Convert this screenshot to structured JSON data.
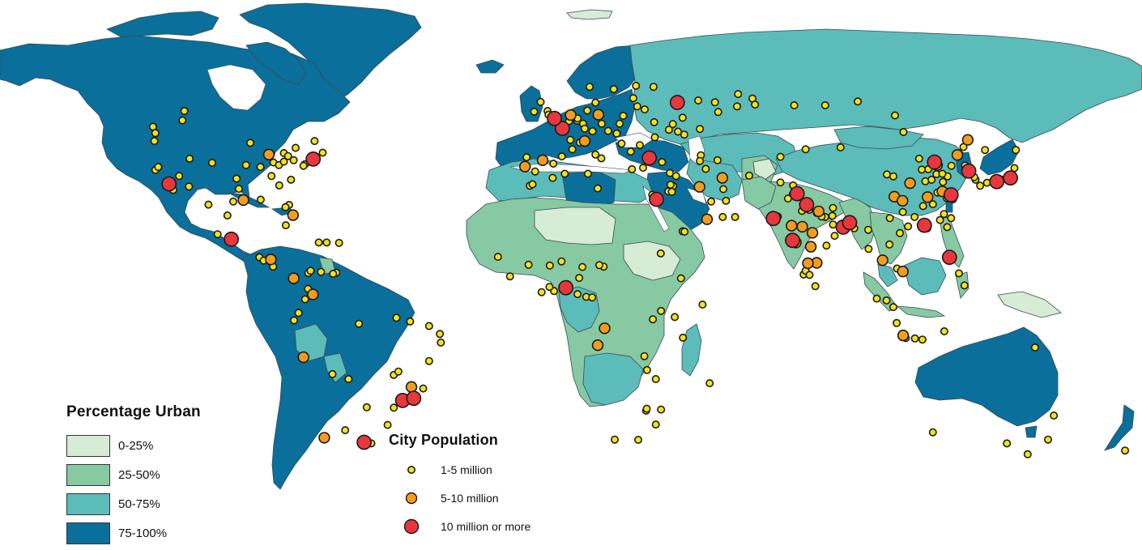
{
  "legend_urban": {
    "title": "Percentage Urban",
    "classes": [
      {
        "label": "0-25%",
        "color": "#d6ecd4"
      },
      {
        "label": "25-50%",
        "color": "#86c9a3"
      },
      {
        "label": "50-75%",
        "color": "#5bbcb9"
      },
      {
        "label": "75-100%",
        "color": "#0a6f9a"
      }
    ]
  },
  "legend_city": {
    "title": "City Population",
    "classes": [
      {
        "label": "1-5 million",
        "color": "#f5e11a"
      },
      {
        "label": "5-10 million",
        "color": "#f39c1f"
      },
      {
        "label": "10 million or more",
        "color": "#e8363d"
      }
    ]
  },
  "cities_large": [
    {
      "lon": -118.2,
      "lat": 34.1
    },
    {
      "lon": -74.0,
      "lat": 40.7
    },
    {
      "lon": -99.1,
      "lat": 19.4
    },
    {
      "lon": -46.6,
      "lat": -23.5
    },
    {
      "lon": -43.2,
      "lat": -22.9
    },
    {
      "lon": -58.4,
      "lat": -34.6
    },
    {
      "lon": 2.35,
      "lat": 48.85
    },
    {
      "lon": -0.1,
      "lat": 51.5
    },
    {
      "lon": 37.6,
      "lat": 55.75
    },
    {
      "lon": 29.0,
      "lat": 41.0
    },
    {
      "lon": 31.2,
      "lat": 30.0
    },
    {
      "lon": 3.4,
      "lat": 6.5
    },
    {
      "lon": 72.9,
      "lat": 19.1
    },
    {
      "lon": 77.2,
      "lat": 28.6
    },
    {
      "lon": 88.4,
      "lat": 22.6
    },
    {
      "lon": 67.0,
      "lat": 24.9
    },
    {
      "lon": 90.4,
      "lat": 23.8
    },
    {
      "lon": 116.4,
      "lat": 39.9
    },
    {
      "lon": 121.5,
      "lat": 31.2
    },
    {
      "lon": 113.3,
      "lat": 23.1
    },
    {
      "lon": 139.7,
      "lat": 35.7
    },
    {
      "lon": 135.5,
      "lat": 34.7
    },
    {
      "lon": 126.9,
      "lat": 37.5
    },
    {
      "lon": 121.0,
      "lat": 14.6
    },
    {
      "lon": 74.3,
      "lat": 31.5
    }
  ],
  "cities_medium": [
    {
      "lon": -87.6,
      "lat": 41.9
    },
    {
      "lon": -95.4,
      "lat": 29.8
    },
    {
      "lon": -80.2,
      "lat": 25.8
    },
    {
      "lon": -77.0,
      "lat": -12.0
    },
    {
      "lon": -70.6,
      "lat": -33.4
    },
    {
      "lon": -74.1,
      "lat": 4.7
    },
    {
      "lon": -43.9,
      "lat": -19.9
    },
    {
      "lon": -3.7,
      "lat": 40.4
    },
    {
      "lon": 4.9,
      "lat": 52.4
    },
    {
      "lon": 13.4,
      "lat": 52.5
    },
    {
      "lon": 51.4,
      "lat": 35.7
    },
    {
      "lon": 44.4,
      "lat": 33.3
    },
    {
      "lon": 46.7,
      "lat": 24.7
    },
    {
      "lon": 15.3,
      "lat": -4.3
    },
    {
      "lon": 13.2,
      "lat": -8.8
    },
    {
      "lon": 80.3,
      "lat": 13.1
    },
    {
      "lon": 77.6,
      "lat": 13.0
    },
    {
      "lon": 78.5,
      "lat": 17.4
    },
    {
      "lon": 72.6,
      "lat": 23.0
    },
    {
      "lon": 106.8,
      "lat": -6.2
    },
    {
      "lon": 100.5,
      "lat": 13.8
    },
    {
      "lon": 106.7,
      "lat": 10.8
    },
    {
      "lon": 104.1,
      "lat": 30.7
    },
    {
      "lon": 106.6,
      "lat": 29.6
    },
    {
      "lon": 114.3,
      "lat": 30.6
    },
    {
      "lon": 117.2,
      "lat": 39.1
    },
    {
      "lon": 123.4,
      "lat": 41.8
    },
    {
      "lon": 126.6,
      "lat": 45.8
    },
    {
      "lon": 118.8,
      "lat": 32.1
    },
    {
      "lon": 108.9,
      "lat": 34.3
    },
    {
      "lon": 79.0,
      "lat": 21.1
    },
    {
      "lon": 75.9,
      "lat": 22.7
    },
    {
      "lon": 80.9,
      "lat": 26.8
    },
    {
      "lon": 73.9,
      "lat": 18.5
    },
    {
      "lon": 9.2,
      "lat": 45.5
    },
    {
      "lon": -9.1,
      "lat": 38.7
    },
    {
      "lon": -87.0,
      "lat": 14.0
    },
    {
      "lon": -80.0,
      "lat": 9.0
    }
  ],
  "cities_small": [
    {
      "lon": -123.1,
      "lat": 49.3
    },
    {
      "lon": -122.4,
      "lat": 47.6
    },
    {
      "lon": -122.7,
      "lat": 45.5
    },
    {
      "lon": -122.4,
      "lat": 37.8
    },
    {
      "lon": -121.5,
      "lat": 38.6
    },
    {
      "lon": -117.2,
      "lat": 32.7
    },
    {
      "lon": -112.1,
      "lat": 33.4
    },
    {
      "lon": -115.1,
      "lat": 36.2
    },
    {
      "lon": -111.9,
      "lat": 40.8
    },
    {
      "lon": -104.99,
      "lat": 39.7
    },
    {
      "lon": -97.5,
      "lat": 35.5
    },
    {
      "lon": -96.8,
      "lat": 32.8
    },
    {
      "lon": -98.5,
      "lat": 29.4
    },
    {
      "lon": -93.3,
      "lat": 45.0
    },
    {
      "lon": -90.2,
      "lat": 38.6
    },
    {
      "lon": -94.6,
      "lat": 39.1
    },
    {
      "lon": -86.2,
      "lat": 39.8
    },
    {
      "lon": -84.5,
      "lat": 39.1
    },
    {
      "lon": -83.0,
      "lat": 40.0
    },
    {
      "lon": -83.0,
      "lat": 42.3
    },
    {
      "lon": -81.7,
      "lat": 41.5
    },
    {
      "lon": -80.0,
      "lat": 40.4
    },
    {
      "lon": -79.4,
      "lat": 43.7
    },
    {
      "lon": -73.6,
      "lat": 45.5
    },
    {
      "lon": -71.1,
      "lat": 42.4
    },
    {
      "lon": -75.2,
      "lat": 40.0
    },
    {
      "lon": -76.6,
      "lat": 39.3
    },
    {
      "lon": -77.0,
      "lat": 38.9
    },
    {
      "lon": -84.4,
      "lat": 33.7
    },
    {
      "lon": -80.8,
      "lat": 35.2
    },
    {
      "lon": -86.8,
      "lat": 36.2
    },
    {
      "lon": -90.1,
      "lat": 29.9
    },
    {
      "lon": -81.4,
      "lat": 28.5
    },
    {
      "lon": -82.5,
      "lat": 27.9
    },
    {
      "lon": -114.1,
      "lat": 51.0
    },
    {
      "lon": -113.5,
      "lat": 53.5
    },
    {
      "lon": -100.3,
      "lat": 25.7
    },
    {
      "lon": -103.3,
      "lat": 20.7
    },
    {
      "lon": -98.2,
      "lat": 19.0
    },
    {
      "lon": -106.1,
      "lat": 28.6
    },
    {
      "lon": -116.9,
      "lat": 32.5
    },
    {
      "lon": -82.4,
      "lat": 23.1
    },
    {
      "lon": -69.9,
      "lat": 18.5
    },
    {
      "lon": -72.3,
      "lat": 18.5
    },
    {
      "lon": -66.1,
      "lat": 18.4
    },
    {
      "lon": -90.5,
      "lat": 14.6
    },
    {
      "lon": -89.2,
      "lat": 13.7
    },
    {
      "lon": -86.3,
      "lat": 12.1
    },
    {
      "lon": -79.5,
      "lat": 9.0
    },
    {
      "lon": -66.9,
      "lat": 10.5
    },
    {
      "lon": -67.9,
      "lat": 10.2
    },
    {
      "lon": -71.6,
      "lat": 10.7
    },
    {
      "lon": -75.5,
      "lat": 10.4
    },
    {
      "lon": -74.8,
      "lat": 11.0
    },
    {
      "lon": -75.6,
      "lat": 6.2
    },
    {
      "lon": -76.5,
      "lat": 3.4
    },
    {
      "lon": -78.5,
      "lat": -0.2
    },
    {
      "lon": -79.9,
      "lat": -2.2
    },
    {
      "lon": -68.1,
      "lat": -16.5
    },
    {
      "lon": -63.2,
      "lat": -17.8
    },
    {
      "lon": -57.6,
      "lat": -25.3
    },
    {
      "lon": -56.2,
      "lat": -34.9
    },
    {
      "lon": -64.2,
      "lat": -31.4
    },
    {
      "lon": -60.0,
      "lat": -3.1
    },
    {
      "lon": -48.5,
      "lat": -1.5
    },
    {
      "lon": -38.5,
      "lat": -3.7
    },
    {
      "lon": -35.2,
      "lat": -5.8
    },
    {
      "lon": -34.9,
      "lat": -8.1
    },
    {
      "lon": -38.5,
      "lat": -13.0
    },
    {
      "lon": -49.3,
      "lat": -16.7
    },
    {
      "lon": -47.9,
      "lat": -15.8
    },
    {
      "lon": -49.3,
      "lat": -25.4
    },
    {
      "lon": -51.2,
      "lat": -30.0
    },
    {
      "lon": -40.3,
      "lat": -20.3
    },
    {
      "lon": -44.3,
      "lat": -2.5
    },
    {
      "lon": -8.6,
      "lat": 41.2
    },
    {
      "lon": -6.0,
      "lat": 37.4
    },
    {
      "lon": 2.2,
      "lat": 41.4
    },
    {
      "lon": -0.4,
      "lat": 39.5
    },
    {
      "lon": -2.2,
      "lat": 53.5
    },
    {
      "lon": -1.9,
      "lat": 52.5
    },
    {
      "lon": -4.3,
      "lat": 55.9
    },
    {
      "lon": -6.3,
      "lat": 53.3
    },
    {
      "lon": 4.4,
      "lat": 50.8
    },
    {
      "lon": 6.9,
      "lat": 50.9
    },
    {
      "lon": 8.7,
      "lat": 50.1
    },
    {
      "lon": 10.0,
      "lat": 53.6
    },
    {
      "lon": 11.6,
      "lat": 48.1
    },
    {
      "lon": 9.2,
      "lat": 48.8
    },
    {
      "lon": 7.0,
      "lat": 51.5
    },
    {
      "lon": 12.5,
      "lat": 55.7
    },
    {
      "lon": 18.1,
      "lat": 59.3
    },
    {
      "lon": 10.7,
      "lat": 59.9
    },
    {
      "lon": 24.9,
      "lat": 60.2
    },
    {
      "lon": 21.0,
      "lat": 52.2
    },
    {
      "lon": 19.9,
      "lat": 50.1
    },
    {
      "lon": 14.4,
      "lat": 50.1
    },
    {
      "lon": 16.4,
      "lat": 48.2
    },
    {
      "lon": 19.0,
      "lat": 47.5
    },
    {
      "lon": 26.1,
      "lat": 44.4
    },
    {
      "lon": 20.5,
      "lat": 44.8
    },
    {
      "lon": 23.3,
      "lat": 42.7
    },
    {
      "lon": 23.7,
      "lat": 38.0
    },
    {
      "lon": 12.5,
      "lat": 41.9
    },
    {
      "lon": 14.3,
      "lat": 40.9
    },
    {
      "lon": 7.7,
      "lat": 45.1
    },
    {
      "lon": 5.4,
      "lat": 43.3
    },
    {
      "lon": 4.8,
      "lat": 45.8
    },
    {
      "lon": 30.5,
      "lat": 50.5
    },
    {
      "lon": 36.2,
      "lat": 50.0
    },
    {
      "lon": 30.7,
      "lat": 46.5
    },
    {
      "lon": 35.0,
      "lat": 48.5
    },
    {
      "lon": 37.8,
      "lat": 48.0
    },
    {
      "lon": 27.6,
      "lat": 53.9
    },
    {
      "lon": 30.3,
      "lat": 59.9
    },
    {
      "lon": 24.1,
      "lat": 56.9
    },
    {
      "lon": 25.3,
      "lat": 54.7
    },
    {
      "lon": 44.0,
      "lat": 56.3
    },
    {
      "lon": 49.1,
      "lat": 55.8
    },
    {
      "lon": 50.1,
      "lat": 53.2
    },
    {
      "lon": 44.5,
      "lat": 48.7
    },
    {
      "lon": 39.7,
      "lat": 47.2
    },
    {
      "lon": 39.2,
      "lat": 51.7
    },
    {
      "lon": 56.2,
      "lat": 58.0
    },
    {
      "lon": 60.6,
      "lat": 56.8
    },
    {
      "lon": 61.4,
      "lat": 55.2
    },
    {
      "lon": 55.9,
      "lat": 54.7
    },
    {
      "lon": 73.4,
      "lat": 55.0
    },
    {
      "lon": 82.9,
      "lat": 55.0
    },
    {
      "lon": 92.9,
      "lat": 56.0
    },
    {
      "lon": 104.3,
      "lat": 52.3
    },
    {
      "lon": 131.9,
      "lat": 43.1
    },
    {
      "lon": 44.8,
      "lat": 41.7
    },
    {
      "lon": 49.9,
      "lat": 40.4
    },
    {
      "lon": 44.5,
      "lat": 40.2
    },
    {
      "lon": 32.9,
      "lat": 39.9
    },
    {
      "lon": 27.1,
      "lat": 38.4
    },
    {
      "lon": 35.3,
      "lat": 37.0
    },
    {
      "lon": 36.3,
      "lat": 33.5
    },
    {
      "lon": 37.2,
      "lat": 36.2
    },
    {
      "lon": 35.5,
      "lat": 33.9
    },
    {
      "lon": 34.8,
      "lat": 32.1
    },
    {
      "lon": 35.9,
      "lat": 32.0
    },
    {
      "lon": 39.2,
      "lat": 21.5
    },
    {
      "lon": 39.8,
      "lat": 21.4
    },
    {
      "lon": 55.3,
      "lat": 25.3
    },
    {
      "lon": 51.5,
      "lat": 25.3
    },
    {
      "lon": 47.98,
      "lat": 29.4
    },
    {
      "lon": 59.6,
      "lat": 36.3
    },
    {
      "lon": 51.7,
      "lat": 32.7
    },
    {
      "lon": 52.5,
      "lat": 29.6
    },
    {
      "lon": 46.3,
      "lat": 38.1
    },
    {
      "lon": 69.2,
      "lat": 41.3
    },
    {
      "lon": 76.9,
      "lat": 43.3
    },
    {
      "lon": 69.2,
      "lat": 34.5
    },
    {
      "lon": 71.5,
      "lat": 30.2
    },
    {
      "lon": 73.1,
      "lat": 33.7
    },
    {
      "lon": 73.0,
      "lat": 31.4
    },
    {
      "lon": 68.4,
      "lat": 25.4
    },
    {
      "lon": 75.8,
      "lat": 26.9
    },
    {
      "lon": 80.3,
      "lat": 26.4
    },
    {
      "lon": 85.1,
      "lat": 25.6
    },
    {
      "lon": 82.9,
      "lat": 25.3
    },
    {
      "lon": 78.0,
      "lat": 27.2
    },
    {
      "lon": 81.8,
      "lat": 25.4
    },
    {
      "lon": 85.3,
      "lat": 23.3
    },
    {
      "lon": 85.8,
      "lat": 20.3
    },
    {
      "lon": 83.3,
      "lat": 17.7
    },
    {
      "lon": 76.3,
      "lat": 10.0
    },
    {
      "lon": 76.9,
      "lat": 11.0
    },
    {
      "lon": 78.1,
      "lat": 9.9
    },
    {
      "lon": 79.9,
      "lat": 6.9
    },
    {
      "lon": 85.3,
      "lat": 27.7
    },
    {
      "lon": 91.8,
      "lat": 22.3
    },
    {
      "lon": 96.2,
      "lat": 16.8
    },
    {
      "lon": 96.1,
      "lat": 21.9
    },
    {
      "lon": 102.6,
      "lat": 18.0
    },
    {
      "lon": 105.8,
      "lat": 21.0
    },
    {
      "lon": 104.9,
      "lat": 11.6
    },
    {
      "lon": 101.7,
      "lat": 3.1
    },
    {
      "lon": 103.8,
      "lat": 1.35
    },
    {
      "lon": 98.7,
      "lat": 3.6
    },
    {
      "lon": 104.8,
      "lat": -2.9
    },
    {
      "lon": 112.7,
      "lat": -7.3
    },
    {
      "lon": 107.6,
      "lat": -6.9
    },
    {
      "lon": 110.4,
      "lat": -7.0
    },
    {
      "lon": 119.4,
      "lat": -5.1
    },
    {
      "lon": 125.6,
      "lat": 7.1
    },
    {
      "lon": 123.9,
      "lat": 10.3
    },
    {
      "lon": 114.2,
      "lat": 22.3
    },
    {
      "lon": 121.5,
      "lat": 25.0
    },
    {
      "lon": 120.3,
      "lat": 22.6
    },
    {
      "lon": 119.3,
      "lat": 26.1
    },
    {
      "lon": 118.1,
      "lat": 24.5
    },
    {
      "lon": 120.2,
      "lat": 30.3
    },
    {
      "lon": 112.9,
      "lat": 28.2
    },
    {
      "lon": 115.9,
      "lat": 28.7
    },
    {
      "lon": 117.3,
      "lat": 31.8
    },
    {
      "lon": 113.6,
      "lat": 34.8
    },
    {
      "lon": 117.0,
      "lat": 36.7
    },
    {
      "lon": 120.4,
      "lat": 36.1
    },
    {
      "lon": 114.5,
      "lat": 38.0
    },
    {
      "lon": 112.5,
      "lat": 37.9
    },
    {
      "lon": 111.7,
      "lat": 40.8
    },
    {
      "lon": 103.8,
      "lat": 36.1
    },
    {
      "lon": 101.8,
      "lat": 36.6
    },
    {
      "lon": 87.6,
      "lat": 43.8
    },
    {
      "lon": 102.7,
      "lat": 25.0
    },
    {
      "lon": 106.7,
      "lat": 26.6
    },
    {
      "lon": 108.3,
      "lat": 22.8
    },
    {
      "lon": 110.3,
      "lat": 25.3
    },
    {
      "lon": 125.3,
      "lat": 43.9
    },
    {
      "lon": 121.6,
      "lat": 38.9
    },
    {
      "lon": 119.0,
      "lat": 34.6
    },
    {
      "lon": 120.9,
      "lat": 32.0
    },
    {
      "lon": 122.1,
      "lat": 30.0
    },
    {
      "lon": 118.8,
      "lat": 36.8
    },
    {
      "lon": 115.5,
      "lat": 35.2
    },
    {
      "lon": 129.0,
      "lat": 35.2
    },
    {
      "lon": 128.6,
      "lat": 35.9
    },
    {
      "lon": 126.7,
      "lat": 37.5
    },
    {
      "lon": 125.75,
      "lat": 39.0
    },
    {
      "lon": 130.4,
      "lat": 33.6
    },
    {
      "lon": 132.5,
      "lat": 34.4
    },
    {
      "lon": 136.9,
      "lat": 35.2
    },
    {
      "lon": 140.9,
      "lat": 38.3
    },
    {
      "lon": 141.35,
      "lat": 43.1
    },
    {
      "lon": 106.9,
      "lat": 47.9
    },
    {
      "lon": -17.4,
      "lat": 14.7
    },
    {
      "lon": -13.7,
      "lat": 9.5
    },
    {
      "lon": -7.6,
      "lat": 33.6
    },
    {
      "lon": -6.8,
      "lat": 34.0
    },
    {
      "lon": 3.1,
      "lat": 36.8
    },
    {
      "lon": -0.6,
      "lat": 35.7
    },
    {
      "lon": 10.2,
      "lat": 36.8
    },
    {
      "lon": 13.2,
      "lat": 32.9
    },
    {
      "lon": 29.9,
      "lat": 31.2
    },
    {
      "lon": 32.5,
      "lat": 15.6
    },
    {
      "lon": 38.7,
      "lat": 9.0
    },
    {
      "lon": 45.3,
      "lat": 2.0
    },
    {
      "lon": 36.8,
      "lat": -1.3
    },
    {
      "lon": 39.3,
      "lat": -6.8
    },
    {
      "lon": 32.6,
      "lat": 0.3
    },
    {
      "lon": 30.1,
      "lat": -1.9
    },
    {
      "lon": 28.3,
      "lat": -15.4
    },
    {
      "lon": 31.0,
      "lat": -17.8
    },
    {
      "lon": 27.5,
      "lat": -11.7
    },
    {
      "lon": 32.6,
      "lat": -25.9
    },
    {
      "lon": 28.0,
      "lat": -26.2
    },
    {
      "lon": 28.2,
      "lat": -25.7
    },
    {
      "lon": 31.0,
      "lat": -29.9
    },
    {
      "lon": 18.4,
      "lat": -33.9
    },
    {
      "lon": 25.6,
      "lat": -33.96
    },
    {
      "lon": 47.5,
      "lat": -18.9
    },
    {
      "lon": -4.0,
      "lat": 5.3
    },
    {
      "lon": -0.2,
      "lat": 5.6
    },
    {
      "lon": -1.6,
      "lat": 6.7
    },
    {
      "lon": -1.5,
      "lat": 12.4
    },
    {
      "lon": -8.0,
      "lat": 12.6
    },
    {
      "lon": 2.1,
      "lat": 13.5
    },
    {
      "lon": 7.5,
      "lat": 9.1
    },
    {
      "lon": 8.5,
      "lat": 12.0
    },
    {
      "lon": 3.9,
      "lat": 7.4
    },
    {
      "lon": 7.0,
      "lat": 4.8
    },
    {
      "lon": 9.7,
      "lat": 4.05
    },
    {
      "lon": 11.5,
      "lat": 3.9
    },
    {
      "lon": 15.0,
      "lat": 12.1
    },
    {
      "lon": 2.4,
      "lat": 6.4
    },
    {
      "lon": 13.7,
      "lat": 12.5
    },
    {
      "lon": 144.96,
      "lat": -37.8
    },
    {
      "lon": 151.2,
      "lat": -33.9
    },
    {
      "lon": 153.0,
      "lat": -27.5
    },
    {
      "lon": 115.9,
      "lat": -31.95
    },
    {
      "lon": 138.6,
      "lat": -34.9
    },
    {
      "lon": 174.8,
      "lat": -36.8
    },
    {
      "lon": 147.2,
      "lat": -9.4
    }
  ]
}
